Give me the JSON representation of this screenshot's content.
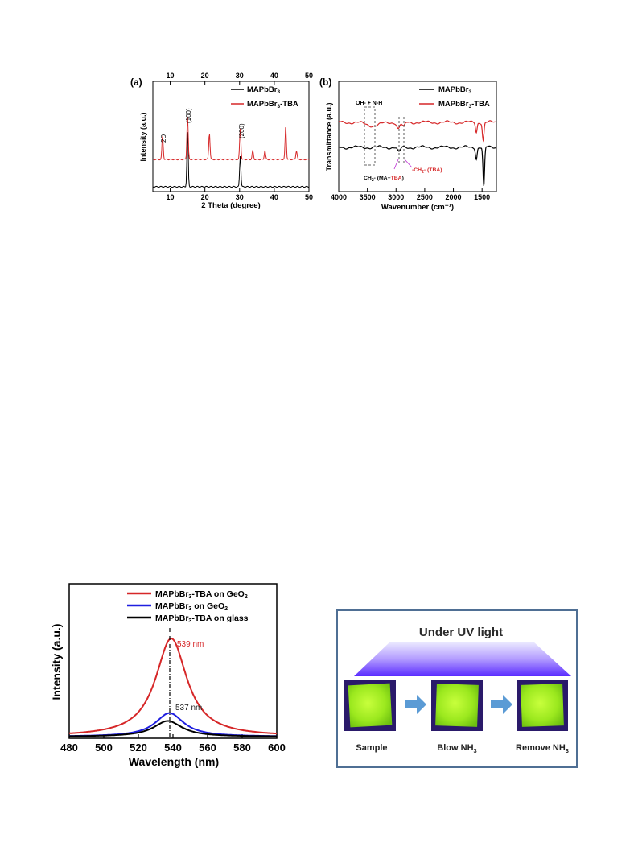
{
  "figure_a": {
    "panel_label": "(a)",
    "ylabel": "Intensity (a.u.)",
    "xlabel": "2 Theta (degree)",
    "legend": [
      {
        "name": "MAPbBr",
        "sub": "3",
        "rest": "",
        "color": "#000000"
      },
      {
        "name": "MAPbBr",
        "sub": "3",
        "rest": "-TBA",
        "color": "#d62728"
      }
    ],
    "annotations": [
      "2D",
      "(100)",
      "(200)"
    ]
  },
  "figure_b": {
    "panel_label": "(b)",
    "ylabel": "Transmittance (a.u.)",
    "xlabel": "Wavenumber (cm⁻¹)",
    "legend": [
      {
        "name": "MAPbBr",
        "sub": "3",
        "rest": "",
        "color": "#000000"
      },
      {
        "name": "MAPbBr",
        "sub": "3",
        "rest": "-TBA",
        "color": "#d62728"
      }
    ],
    "annotation_ohnh": "OH- + N-H",
    "annotation_ch2_ma_prefix": "CH",
    "annotation_ch2_ma_sub": "2",
    "annotation_ch2_ma_mid": "- (MA+",
    "annotation_ch2_ma_tba": "TBA",
    "annotation_ch2_ma_end": ")",
    "annotation_ch2_tba": "-CH",
    "annotation_ch2_tba_sub": "2",
    "annotation_ch2_tba_end": "- (TBA)"
  },
  "figure_c": {
    "ylabel": "Intensity (a.u.)",
    "xlabel": "Wavelength (nm)",
    "legend": [
      {
        "name": "MAPbBr",
        "sub": "3",
        "rest": "-TBA on GeO",
        "sub2": "2",
        "color": "#d62728"
      },
      {
        "name": "MAPbBr",
        "sub": "3",
        "rest": " on GeO",
        "sub2": "2",
        "color": "#1f1fe0"
      },
      {
        "name": "MAPbBr",
        "sub": "3",
        "rest": "-TBA on glass",
        "sub2": "",
        "color": "#000000"
      }
    ],
    "peak_label_1": "539 nm",
    "peak_label_2": "537 nm"
  },
  "figure_d": {
    "title": "Under UV light",
    "steps": [
      {
        "label": "Sample",
        "sub": ""
      },
      {
        "label": "Blow NH",
        "sub": "3"
      },
      {
        "label": "Remove NH",
        "sub": "3"
      }
    ],
    "colors": {
      "frame": "#4f6f94",
      "arrow": "#5b9bd5",
      "uv_top": "#e9e6ff",
      "uv_bottom": "#6a3cff"
    }
  },
  "chart_data": [
    {
      "type": "line",
      "x_top_ticks": [
        10,
        20,
        30,
        40,
        50
      ],
      "x_bottom_ticks": [
        10,
        20,
        30,
        40,
        50
      ],
      "xlim": [
        5,
        50
      ],
      "xlabel": "2 Theta (degree)",
      "ylabel": "Intensity (a.u.)",
      "series": [
        {
          "name": "MAPbBr3",
          "peaks": [
            [
              15.0,
              1.0
            ],
            [
              30.2,
              0.55
            ]
          ],
          "baseline": 0.0
        },
        {
          "name": "MAPbBr3-TBA",
          "peaks": [
            [
              7.8,
              0.55
            ],
            [
              15.0,
              1.0
            ],
            [
              21.3,
              0.6
            ],
            [
              30.2,
              0.7
            ],
            [
              33.8,
              0.2
            ],
            [
              37.3,
              0.2
            ],
            [
              43.3,
              0.75
            ],
            [
              46.4,
              0.2
            ]
          ],
          "baseline": 0.6
        }
      ],
      "annotations": [
        {
          "text": "2D",
          "x": 7.8
        },
        {
          "text": "(100)",
          "x": 15.0
        },
        {
          "text": "(200)",
          "x": 30.2
        }
      ],
      "legend": "top-right"
    },
    {
      "type": "line",
      "x_ticks": [
        4000,
        3500,
        3000,
        2500,
        2000,
        1500
      ],
      "xlim": [
        4000,
        1250
      ],
      "xlabel": "Wavenumber (cm-1)",
      "ylabel": "Transmittance (a.u.)",
      "series": [
        {
          "name": "MAPbBr3",
          "dips": [
            [
              2950,
              0.12
            ],
            [
              1600,
              0.25
            ],
            [
              1470,
              0.9
            ]
          ]
        },
        {
          "name": "MAPbBr3-TBA",
          "dips": [
            [
              3400,
              0.1
            ],
            [
              2960,
              0.2
            ],
            [
              2870,
              0.15
            ],
            [
              1600,
              0.3
            ],
            [
              1480,
              0.55
            ]
          ]
        }
      ],
      "legend": "top-right"
    },
    {
      "type": "line",
      "x_ticks": [
        480,
        500,
        520,
        540,
        560,
        580,
        600
      ],
      "xlim": [
        480,
        600
      ],
      "xlabel": "Wavelength (nm)",
      "ylabel": "Intensity (a.u.)",
      "series": [
        {
          "name": "MAPbBr3-TBA on GeO2",
          "peak_x": 539,
          "peak_y": 1.0,
          "fwhm": 22
        },
        {
          "name": "MAPbBr3 on GeO2",
          "peak_x": 538,
          "peak_y": 0.24,
          "fwhm": 20
        },
        {
          "name": "MAPbBr3-TBA on glass",
          "peak_x": 537,
          "peak_y": 0.16,
          "fwhm": 20
        }
      ],
      "annotations": [
        {
          "text": "539 nm",
          "x": 539
        },
        {
          "text": "537 nm",
          "x": 537
        }
      ],
      "legend": "top-right"
    }
  ]
}
